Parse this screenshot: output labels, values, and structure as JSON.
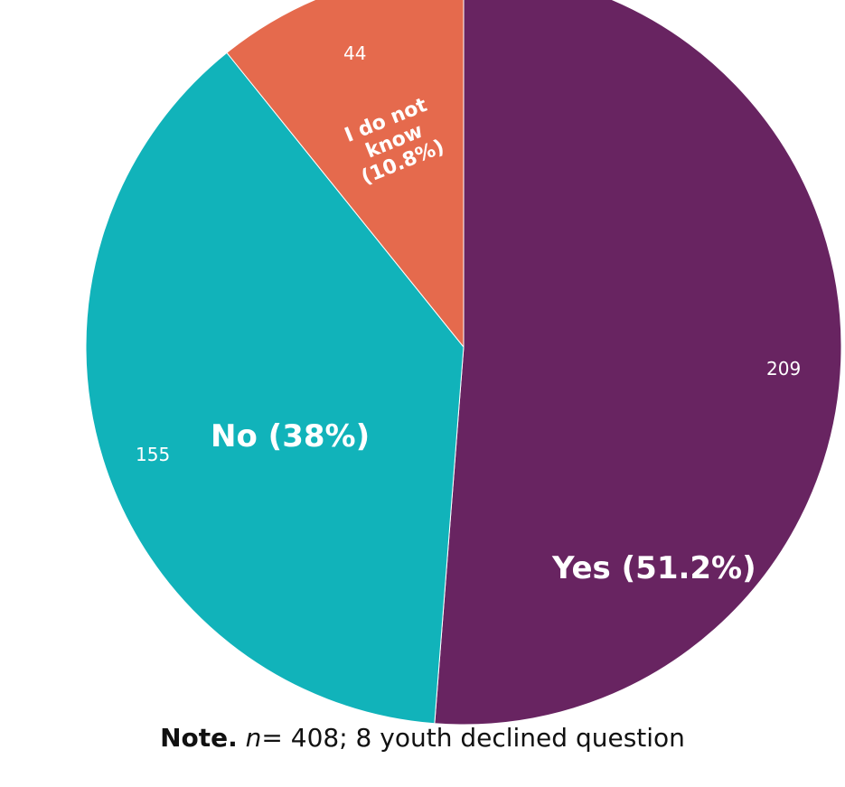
{
  "chart_data": {
    "type": "pie",
    "slices": [
      {
        "label": "Yes (51.2%)",
        "value": 209,
        "percent": 51.2,
        "color": "#682461"
      },
      {
        "label": "No (38%)",
        "value": 155,
        "percent": 38,
        "color": "#11B3BA"
      },
      {
        "label": "I do not know (10.8%)",
        "value": 44,
        "percent": 10.8,
        "color": "#E56A4D"
      }
    ],
    "start_angle_deg": 0,
    "direction": "clockwise",
    "note": {
      "bold": "Note.",
      "italic": "n",
      "text": "= 408; 8 youth declined question"
    }
  },
  "unknown_label_lines": [
    "I do not",
    "know",
    "(10.8%)"
  ]
}
